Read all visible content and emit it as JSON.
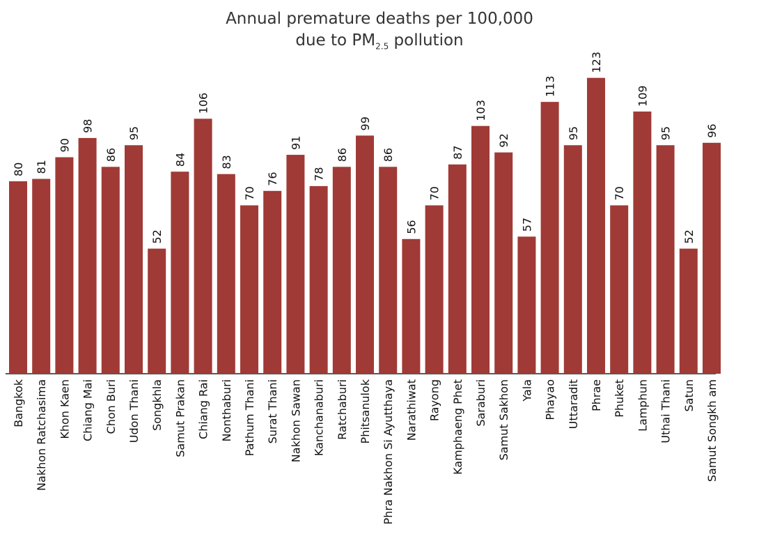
{
  "chart_data": {
    "type": "bar",
    "title_line1": "Annual premature deaths per 100,000",
    "title_line2_prefix": "due to PM",
    "title_line2_subscript": "2.5",
    "title_line2_suffix": " pollution",
    "categories": [
      "Bangkok",
      "Nakhon Ratchasima",
      "Khon Kaen",
      "Chiang Mai",
      "Chon Buri",
      "Udon Thani",
      "Songkhla",
      "Samut Prakan",
      "Chiang Rai",
      "Nonthaburi",
      "Pathum Thani",
      "Surat Thani",
      "Nakhon Sawan",
      "Kanchanaburi",
      "Ratchaburi",
      "Phitsanulok",
      "Phra Nakhon Si Ayutthaya",
      "Narathiwat",
      "Rayong",
      "Kamphaeng Phet",
      "Saraburi",
      "Samut Sakhon",
      "Yala",
      "Phayao",
      "Uttaradit",
      "Phrae",
      "Phuket",
      "Lamphun",
      "Uthai Thani",
      "Satun",
      "Samut Songkh am"
    ],
    "values": [
      80,
      81,
      90,
      98,
      86,
      95,
      52,
      84,
      106,
      83,
      70,
      76,
      91,
      78,
      86,
      99,
      86,
      56,
      70,
      87,
      103,
      92,
      57,
      113,
      95,
      123,
      70,
      109,
      95,
      52,
      96
    ],
    "ylim": [
      0,
      130
    ],
    "bar_color": "#a03a36",
    "grid": false
  }
}
